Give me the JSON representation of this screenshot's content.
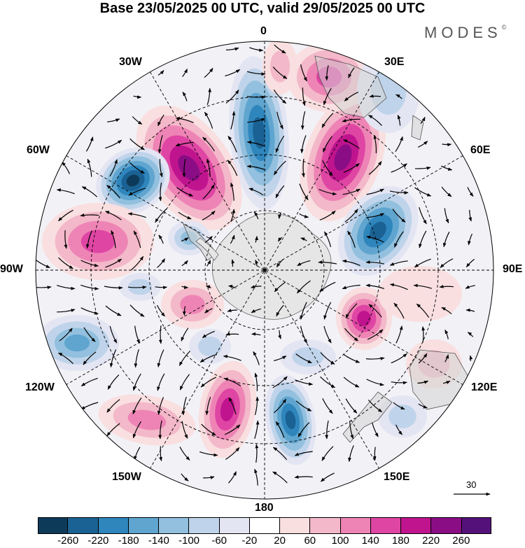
{
  "header": {
    "title": "Base 23/05/2025 00 UTC, valid 29/05/2025 00 UTC",
    "brand": "MODES"
  },
  "map": {
    "projection": "south-polar-stereographic",
    "longitude_labels": {
      "top": "0",
      "top_right_30": "30E",
      "right_60": "60E",
      "right": "90E",
      "right_120": "120E",
      "bottom_right_150": "150E",
      "bottom": "180",
      "bottom_left_150": "150W",
      "left_120": "120W",
      "left": "90W",
      "left_60": "60W",
      "top_left_30": "30W"
    },
    "reference_vector": {
      "label": "30"
    },
    "colors": {
      "land": "#d9d9d9",
      "antarctica": "#e8e8e8",
      "outline": "#000000"
    }
  },
  "colorbar": {
    "tick_labels": [
      "-260",
      "-220",
      "-180",
      "-140",
      "-100",
      "-60",
      "-20",
      "20",
      "60",
      "100",
      "140",
      "180",
      "220",
      "260"
    ],
    "colors": [
      "#0e3a5a",
      "#1b6294",
      "#2f86bd",
      "#5fa5cf",
      "#92c0de",
      "#bfd4ea",
      "#e4e5f3",
      "#ffffff",
      "#f9dfe0",
      "#f3b8c9",
      "#ee84b5",
      "#df46a4",
      "#c0148f",
      "#8a0d85",
      "#55117a"
    ]
  }
}
